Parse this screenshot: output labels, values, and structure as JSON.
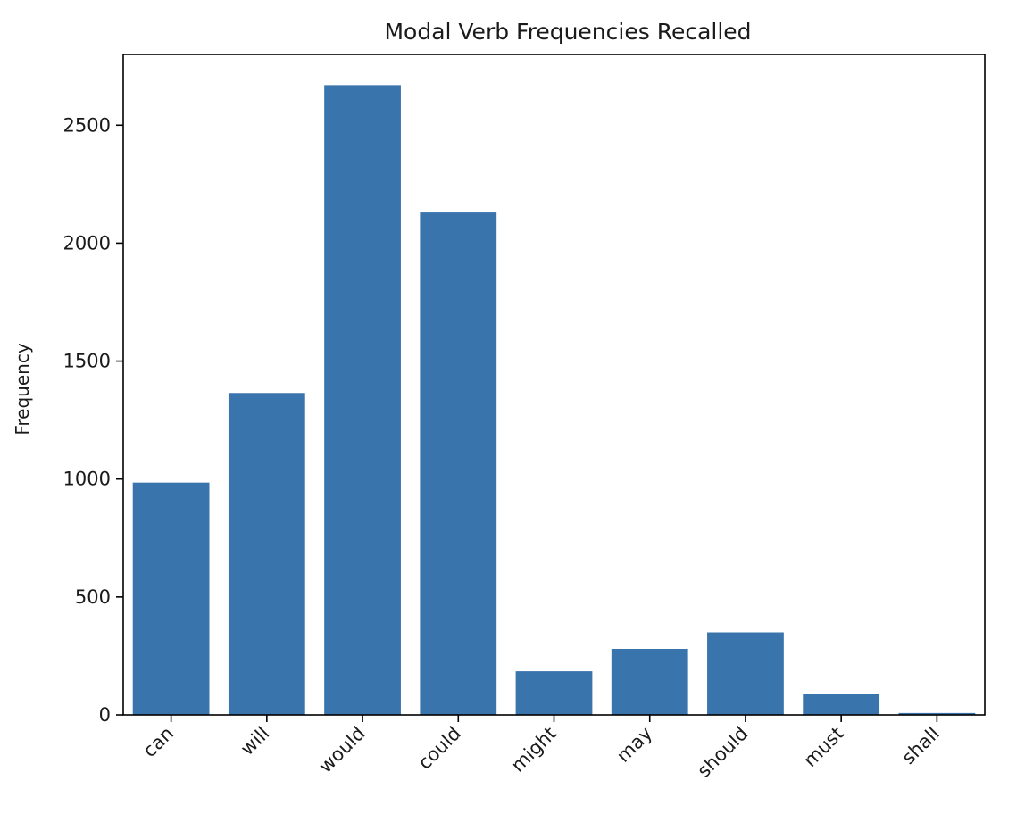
{
  "chart_data": {
    "type": "bar",
    "title": "Modal Verb Frequencies Recalled",
    "xlabel": "",
    "ylabel": "Frequency",
    "categories": [
      "can",
      "will",
      "would",
      "could",
      "might",
      "may",
      "should",
      "must",
      "shall"
    ],
    "values": [
      985,
      1365,
      2670,
      2130,
      185,
      280,
      350,
      90,
      8
    ],
    "ylim": [
      0,
      2800
    ],
    "yticks": [
      0,
      500,
      1000,
      1500,
      2000,
      2500
    ],
    "grid": false,
    "legend": "none",
    "colors": {
      "bar": "#3a74ad",
      "axis": "#000000",
      "text": "#1a1a1a"
    }
  }
}
